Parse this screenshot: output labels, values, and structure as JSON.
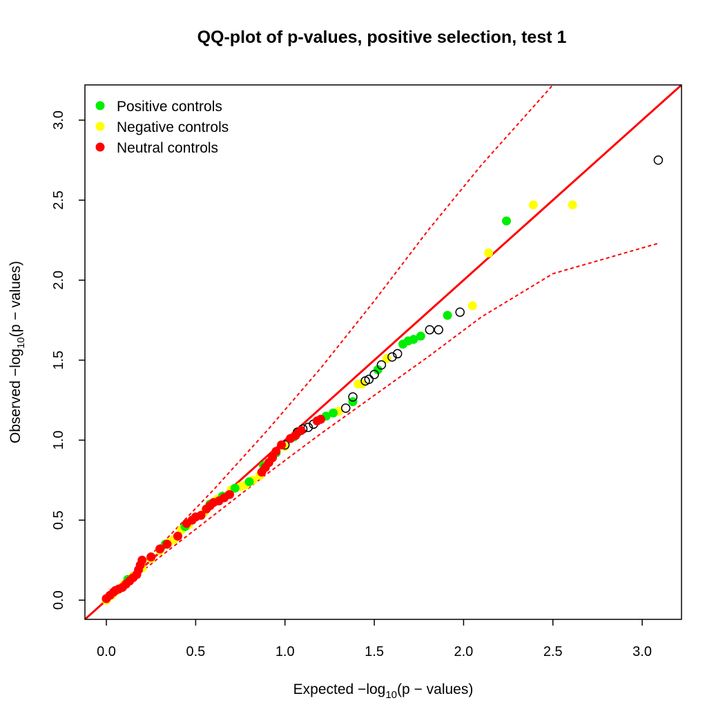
{
  "chart_data": {
    "type": "scatter",
    "title": "QQ-plot of p-values, positive selection, test 1",
    "xlabel": {
      "prefix": "Expected −log",
      "sub": "10",
      "suffix": "(p − values)"
    },
    "ylabel": {
      "prefix": "Observed −log",
      "sub": "10",
      "suffix": "(p − values)"
    },
    "xlim": [
      -0.12,
      3.22
    ],
    "ylim": [
      -0.12,
      3.22
    ],
    "x_ticks": [
      "0.0",
      "0.5",
      "1.0",
      "1.5",
      "2.0",
      "2.5",
      "3.0"
    ],
    "y_ticks": [
      "0.0",
      "0.5",
      "1.0",
      "1.5",
      "2.0",
      "2.5",
      "3.0"
    ],
    "legend": {
      "position": "top-left",
      "entries": [
        {
          "label": "Positive controls",
          "color": "#00ee00"
        },
        {
          "label": "Negative controls",
          "color": "#ffff00"
        },
        {
          "label": "Neutral controls",
          "color": "#ff0000"
        }
      ]
    },
    "reference_line": {
      "slope": 1,
      "intercept": 0,
      "color": "#ff0000"
    },
    "confidence_band": {
      "color": "#ff0000",
      "upper": [
        [
          0.0,
          0.0
        ],
        [
          0.3,
          0.34
        ],
        [
          0.6,
          0.69
        ],
        [
          0.9,
          1.06
        ],
        [
          1.2,
          1.45
        ],
        [
          1.5,
          1.87
        ],
        [
          1.8,
          2.31
        ],
        [
          2.1,
          2.72
        ],
        [
          2.5,
          3.22
        ]
      ],
      "lower": [
        [
          0.0,
          0.0
        ],
        [
          0.3,
          0.27
        ],
        [
          0.6,
          0.53
        ],
        [
          0.9,
          0.79
        ],
        [
          1.2,
          1.04
        ],
        [
          1.5,
          1.28
        ],
        [
          1.8,
          1.52
        ],
        [
          2.1,
          1.77
        ],
        [
          2.5,
          2.04
        ],
        [
          3.09,
          2.23
        ]
      ]
    },
    "series": [
      {
        "name": "Negative controls",
        "color": "#ffff00",
        "points": [
          [
            0.0,
            0.0
          ],
          [
            0.03,
            0.03
          ],
          [
            0.06,
            0.06
          ],
          [
            0.1,
            0.1
          ],
          [
            0.15,
            0.15
          ],
          [
            0.2,
            0.2
          ],
          [
            0.25,
            0.26
          ],
          [
            0.3,
            0.31
          ],
          [
            0.35,
            0.36
          ],
          [
            0.38,
            0.38
          ],
          [
            0.42,
            0.44
          ],
          [
            0.46,
            0.47
          ],
          [
            0.55,
            0.55
          ],
          [
            0.62,
            0.63
          ],
          [
            0.7,
            0.69
          ],
          [
            0.75,
            0.71
          ],
          [
            0.78,
            0.72
          ],
          [
            0.82,
            0.75
          ],
          [
            0.86,
            0.78
          ],
          [
            1.0,
            0.96
          ],
          [
            1.3,
            1.18
          ],
          [
            1.41,
            1.35
          ],
          [
            1.43,
            1.35
          ],
          [
            1.57,
            1.51
          ],
          [
            2.05,
            1.84
          ],
          [
            2.14,
            2.17
          ],
          [
            2.39,
            2.47
          ],
          [
            2.61,
            2.47
          ]
        ]
      },
      {
        "name": "Positive controls",
        "color": "#00ee00",
        "points": [
          [
            0.12,
            0.13
          ],
          [
            0.25,
            0.27
          ],
          [
            0.33,
            0.35
          ],
          [
            0.44,
            0.46
          ],
          [
            0.5,
            0.52
          ],
          [
            0.58,
            0.6
          ],
          [
            0.65,
            0.65
          ],
          [
            0.72,
            0.7
          ],
          [
            0.8,
            0.74
          ],
          [
            0.88,
            0.84
          ],
          [
            0.95,
            0.92
          ],
          [
            1.05,
            1.02
          ],
          [
            1.2,
            1.13
          ],
          [
            1.23,
            1.15
          ],
          [
            1.27,
            1.17
          ],
          [
            1.38,
            1.24
          ],
          [
            1.52,
            1.44
          ],
          [
            1.66,
            1.6
          ],
          [
            1.69,
            1.62
          ],
          [
            1.72,
            1.63
          ],
          [
            1.76,
            1.65
          ],
          [
            1.91,
            1.78
          ],
          [
            2.24,
            2.37
          ]
        ]
      },
      {
        "name": "",
        "color": "none",
        "points": [
          [
            1.0,
            0.97
          ],
          [
            1.07,
            1.05
          ],
          [
            1.1,
            1.07
          ],
          [
            1.13,
            1.08
          ],
          [
            1.16,
            1.1
          ],
          [
            1.34,
            1.2
          ],
          [
            1.38,
            1.27
          ],
          [
            1.45,
            1.37
          ],
          [
            1.47,
            1.38
          ],
          [
            1.5,
            1.41
          ],
          [
            1.54,
            1.47
          ],
          [
            1.6,
            1.52
          ],
          [
            1.63,
            1.54
          ],
          [
            1.81,
            1.69
          ],
          [
            1.86,
            1.69
          ],
          [
            1.98,
            1.8
          ],
          [
            3.09,
            2.75
          ]
        ]
      },
      {
        "name": "Neutral controls",
        "color": "#ff0000",
        "points": [
          [
            0.0,
            0.01
          ],
          [
            0.02,
            0.03
          ],
          [
            0.04,
            0.05
          ],
          [
            0.05,
            0.06
          ],
          [
            0.07,
            0.07
          ],
          [
            0.09,
            0.08
          ],
          [
            0.11,
            0.1
          ],
          [
            0.13,
            0.12
          ],
          [
            0.15,
            0.14
          ],
          [
            0.17,
            0.16
          ],
          [
            0.18,
            0.19
          ],
          [
            0.19,
            0.22
          ],
          [
            0.2,
            0.25
          ],
          [
            0.25,
            0.27
          ],
          [
            0.3,
            0.32
          ],
          [
            0.34,
            0.35
          ],
          [
            0.4,
            0.4
          ],
          [
            0.45,
            0.48
          ],
          [
            0.48,
            0.5
          ],
          [
            0.5,
            0.52
          ],
          [
            0.53,
            0.53
          ],
          [
            0.56,
            0.57
          ],
          [
            0.58,
            0.59
          ],
          [
            0.6,
            0.61
          ],
          [
            0.63,
            0.62
          ],
          [
            0.66,
            0.64
          ],
          [
            0.69,
            0.66
          ],
          [
            0.87,
            0.8
          ],
          [
            0.89,
            0.83
          ],
          [
            0.91,
            0.86
          ],
          [
            0.93,
            0.89
          ],
          [
            0.95,
            0.93
          ],
          [
            0.98,
            0.97
          ],
          [
            1.03,
            1.01
          ],
          [
            1.06,
            1.03
          ],
          [
            1.09,
            1.06
          ],
          [
            1.18,
            1.12
          ],
          [
            1.2,
            1.13
          ]
        ]
      }
    ]
  }
}
